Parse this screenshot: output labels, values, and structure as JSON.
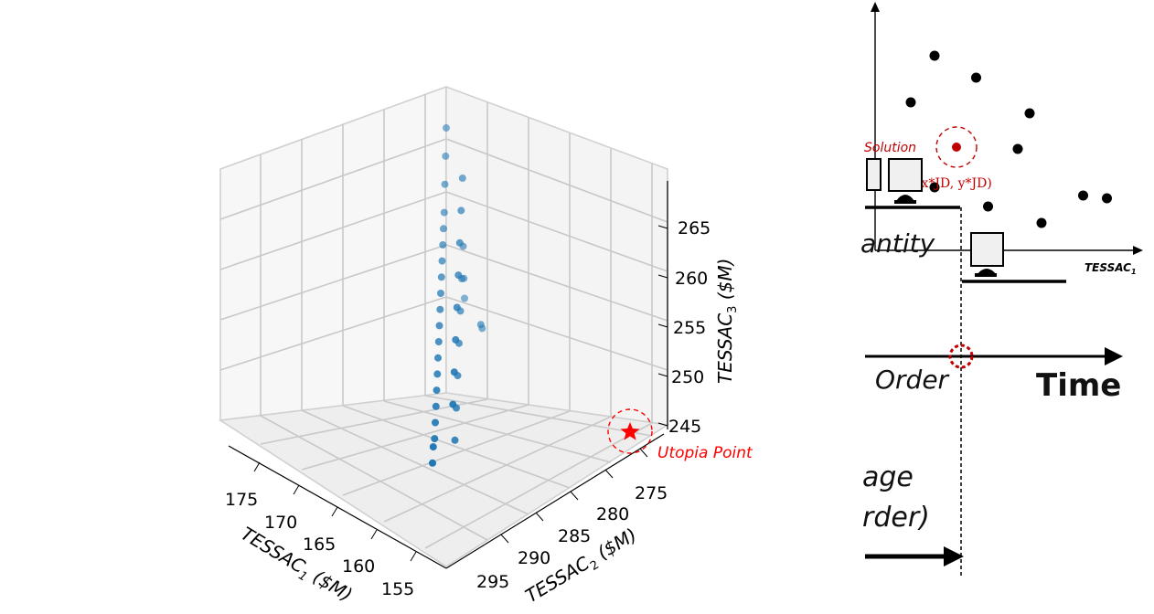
{
  "chart_data": [
    {
      "type": "scatter3d",
      "xlabel": "TESSAC",
      "xlabel_sub": "1",
      "xlabel_unit": " ($M)",
      "ylabel": "TESSAC",
      "ylabel_sub": "2",
      "ylabel_unit": " ($M)",
      "zlabel": "TESSAC",
      "zlabel_sub": "3",
      "zlabel_unit": " ($M)",
      "x_ticks": [
        "175",
        "170",
        "165",
        "160",
        "155"
      ],
      "y_ticks": [
        "275",
        "280",
        "285",
        "290",
        "295"
      ],
      "z_ticks": [
        "245",
        "250",
        "255",
        "260",
        "265"
      ],
      "grid": true,
      "points": [
        {
          "x": 155,
          "y": 295,
          "z": 266
        },
        {
          "x": 156,
          "y": 294,
          "z": 264
        },
        {
          "x": 157,
          "y": 293,
          "z": 262
        },
        {
          "x": 158,
          "y": 292,
          "z": 260
        },
        {
          "x": 159,
          "y": 291,
          "z": 259
        },
        {
          "x": 160,
          "y": 290,
          "z": 258
        },
        {
          "x": 161,
          "y": 289,
          "z": 257
        },
        {
          "x": 162,
          "y": 288,
          "z": 256
        },
        {
          "x": 163,
          "y": 287,
          "z": 255
        },
        {
          "x": 164,
          "y": 286,
          "z": 254
        },
        {
          "x": 165,
          "y": 285,
          "z": 253
        },
        {
          "x": 166,
          "y": 284,
          "z": 252
        },
        {
          "x": 167,
          "y": 283,
          "z": 251
        },
        {
          "x": 168,
          "y": 282,
          "z": 250
        },
        {
          "x": 169,
          "y": 281,
          "z": 249
        },
        {
          "x": 170,
          "y": 280,
          "z": 248
        },
        {
          "x": 171,
          "y": 279,
          "z": 247
        },
        {
          "x": 172,
          "y": 278,
          "z": 246
        },
        {
          "x": 160,
          "y": 288,
          "z": 261
        },
        {
          "x": 158,
          "y": 290,
          "z": 263
        },
        {
          "x": 162,
          "y": 286,
          "z": 259
        },
        {
          "x": 164,
          "y": 284,
          "z": 257
        },
        {
          "x": 166,
          "y": 282,
          "z": 255
        },
        {
          "x": 168,
          "y": 280,
          "z": 253
        },
        {
          "x": 170,
          "y": 278,
          "z": 251
        },
        {
          "x": 172,
          "y": 276,
          "z": 249
        },
        {
          "x": 157,
          "y": 291,
          "z": 257
        },
        {
          "x": 159,
          "y": 289,
          "z": 255
        },
        {
          "x": 161,
          "y": 287,
          "z": 253
        },
        {
          "x": 163,
          "y": 285,
          "z": 251
        },
        {
          "x": 165,
          "y": 283,
          "z": 249
        },
        {
          "x": 167,
          "y": 281,
          "z": 247
        },
        {
          "x": 169,
          "y": 279,
          "z": 245
        },
        {
          "x": 156,
          "y": 292,
          "z": 254
        },
        {
          "x": 155,
          "y": 293,
          "z": 252
        },
        {
          "x": 156,
          "y": 290,
          "z": 250
        },
        {
          "x": 158,
          "y": 288,
          "z": 251
        },
        {
          "x": 174,
          "y": 276,
          "z": 246
        },
        {
          "x": 175,
          "y": 275,
          "z": 245
        }
      ],
      "utopia_point": {
        "label": "Utopia Point",
        "x": 175,
        "y": 275,
        "z": 244
      },
      "colors": {
        "points": "#1f77b4",
        "utopia": "#ff0000"
      }
    },
    {
      "type": "scatter",
      "xlabel": "TESSAC",
      "xlabel_sub": "1",
      "points": [
        {
          "x": 1.0,
          "y": 7.1
        },
        {
          "x": 1.7,
          "y": 6.3
        },
        {
          "x": 0.6,
          "y": 5.4
        },
        {
          "x": 2.6,
          "y": 5.0
        },
        {
          "x": 2.4,
          "y": 3.7
        },
        {
          "x": 3.5,
          "y": 2.0
        },
        {
          "x": 3.9,
          "y": 1.9
        },
        {
          "x": 1.9,
          "y": 1.6
        },
        {
          "x": 2.8,
          "y": 1.0
        },
        {
          "x": 1.0,
          "y": 2.3
        }
      ],
      "solution_label": "Solution",
      "solution_point_label": "(x*JD, y*JD)",
      "colors": {
        "points": "#000000",
        "solution": "#c00000"
      }
    }
  ],
  "fragments": {
    "quantity": "antity",
    "order": "Order",
    "time": "Time",
    "age": "age",
    "order2": "rder)"
  }
}
